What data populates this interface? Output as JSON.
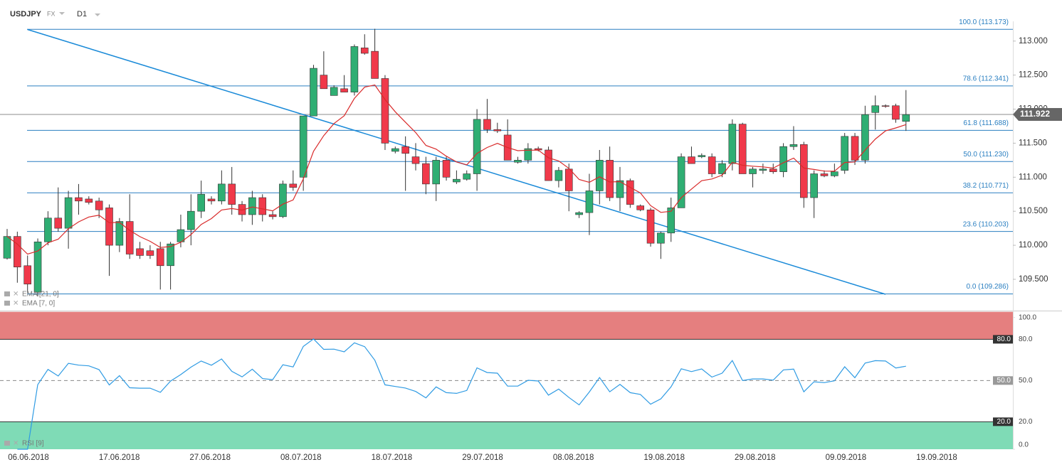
{
  "chart_data": {
    "type": "candlestick",
    "symbol": "USDJPY",
    "market": "FX",
    "timeframe": "D1",
    "indicators": [
      "EMA [21, 0]",
      "EMA [7, 0]"
    ],
    "rsi_label": "RSI [9]",
    "x_labels": [
      "06.06.2018",
      "17.06.2018",
      "27.06.2018",
      "08.07.2018",
      "18.07.2018",
      "29.07.2018",
      "08.08.2018",
      "19.08.2018",
      "29.08.2018",
      "09.09.2018",
      "19.09.2018"
    ],
    "open": [
      109.81,
      110.13,
      109.7,
      109.31,
      110.05,
      110.4,
      110.25,
      110.7,
      110.68,
      110.65,
      110.55,
      110.0,
      110.35,
      109.95,
      109.92,
      109.95,
      109.7,
      110.05,
      110.23,
      110.5,
      110.68,
      110.65,
      110.9,
      110.6,
      110.45,
      110.7,
      110.45,
      110.42,
      110.9,
      111.0,
      111.9,
      112.5,
      112.2,
      112.3,
      112.25,
      112.9,
      112.85,
      112.45,
      111.38,
      111.45,
      111.3,
      111.2,
      110.9,
      111.25,
      110.93,
      110.97,
      111.05,
      111.85,
      111.7,
      111.62,
      111.22,
      111.25,
      111.42,
      111.4,
      110.95,
      111.12,
      110.45,
      110.48,
      110.8,
      111.25,
      110.7,
      110.95,
      110.58,
      110.52,
      110.03,
      110.18,
      110.55,
      111.3,
      111.3,
      111.3,
      111.05,
      111.2,
      111.78,
      111.05,
      111.1,
      111.12,
      111.08,
      111.45,
      111.48,
      110.7,
      111.05,
      111.02,
      111.1,
      111.6,
      111.25,
      111.95,
      112.05,
      112.05,
      111.82
    ],
    "high": [
      110.24,
      110.2,
      109.85,
      110.1,
      110.5,
      110.85,
      110.8,
      110.9,
      110.72,
      110.7,
      110.6,
      110.4,
      110.75,
      110.05,
      110.0,
      110.05,
      110.05,
      110.45,
      110.75,
      110.95,
      110.72,
      111.1,
      111.15,
      110.65,
      110.8,
      110.75,
      110.5,
      110.95,
      111.1,
      111.9,
      112.65,
      112.85,
      112.35,
      112.5,
      112.95,
      113.1,
      113.18,
      112.5,
      111.45,
      111.6,
      111.5,
      111.3,
      111.3,
      111.3,
      111.1,
      111.1,
      112.0,
      112.15,
      111.8,
      111.85,
      111.3,
      111.5,
      111.45,
      111.45,
      111.15,
      111.2,
      110.5,
      111.05,
      111.4,
      111.45,
      111.15,
      110.98,
      110.6,
      110.55,
      110.2,
      110.7,
      111.35,
      111.45,
      111.35,
      111.35,
      111.25,
      111.85,
      111.8,
      111.15,
      111.2,
      111.2,
      111.5,
      111.75,
      111.52,
      111.1,
      111.1,
      111.2,
      111.65,
      111.65,
      112.05,
      112.2,
      112.07,
      112.08,
      112.28
    ],
    "low": [
      109.79,
      109.45,
      109.3,
      109.25,
      110.0,
      110.2,
      109.95,
      110.45,
      110.6,
      110.4,
      109.55,
      109.9,
      109.8,
      109.8,
      109.8,
      109.35,
      109.35,
      109.97,
      110.0,
      110.4,
      110.6,
      110.6,
      110.45,
      110.35,
      110.3,
      110.35,
      110.38,
      110.4,
      110.8,
      110.8,
      111.9,
      112.3,
      112.2,
      112.25,
      112.2,
      112.8,
      112.45,
      111.4,
      111.35,
      110.8,
      111.1,
      110.75,
      110.65,
      110.95,
      110.9,
      110.95,
      110.8,
      111.65,
      111.65,
      111.25,
      111.2,
      111.2,
      111.38,
      110.95,
      110.85,
      110.5,
      110.4,
      110.15,
      110.6,
      110.65,
      110.5,
      110.55,
      110.5,
      109.98,
      109.8,
      110.05,
      110.55,
      111.2,
      111.28,
      111.0,
      111.0,
      111.1,
      111.05,
      110.85,
      111.05,
      111.05,
      111.0,
      111.4,
      110.55,
      110.4,
      111.0,
      111.0,
      111.05,
      111.18,
      111.2,
      111.7,
      112.02,
      111.8,
      111.68
    ],
    "close": [
      110.13,
      109.68,
      109.43,
      110.05,
      110.4,
      110.25,
      110.7,
      110.65,
      110.63,
      110.52,
      110.0,
      110.35,
      109.87,
      109.85,
      109.85,
      109.7,
      110.02,
      110.23,
      110.5,
      110.75,
      110.65,
      110.9,
      110.6,
      110.45,
      110.7,
      110.45,
      110.42,
      110.9,
      110.85,
      111.9,
      112.6,
      112.3,
      112.32,
      112.25,
      112.92,
      112.82,
      112.45,
      111.5,
      111.42,
      111.35,
      111.2,
      110.9,
      111.25,
      111.0,
      110.97,
      111.05,
      111.85,
      111.7,
      111.68,
      111.25,
      111.25,
      111.42,
      111.4,
      110.95,
      111.1,
      110.8,
      110.48,
      110.8,
      111.25,
      110.7,
      110.95,
      110.6,
      110.52,
      110.03,
      110.18,
      110.55,
      111.3,
      111.2,
      111.32,
      111.05,
      111.2,
      111.78,
      111.05,
      111.12,
      111.12,
      111.08,
      111.45,
      111.48,
      110.7,
      111.05,
      111.02,
      111.08,
      111.6,
      111.25,
      111.92,
      112.05,
      112.04,
      111.85,
      111.92
    ],
    "last_price": {
      "value": 111.922,
      "label": "111.922"
    },
    "fib_levels": [
      {
        "value": 113.173,
        "label": "100.0 (113.173)"
      },
      {
        "value": 112.341,
        "label": "78.6 (112.341)"
      },
      {
        "value": 111.688,
        "label": "61.8 (111.688)"
      },
      {
        "value": 111.23,
        "label": "50.0 (111.230)"
      },
      {
        "value": 110.771,
        "label": "38.2 (110.771)"
      },
      {
        "value": 110.203,
        "label": "23.6 (110.203)"
      },
      {
        "value": 109.286,
        "label": "0.0 (109.286)"
      }
    ],
    "trendline": {
      "x": [
        2,
        86
      ],
      "y": [
        113.17,
        109.28
      ]
    },
    "ylim": [
      109.04,
      113.29
    ],
    "yticks": [
      {
        "value": 109.5,
        "label": "109.500"
      },
      {
        "value": 110,
        "label": "110.000"
      },
      {
        "value": 110.5,
        "label": "110.500"
      },
      {
        "value": 111,
        "label": "111.000"
      },
      {
        "value": 111.5,
        "label": "111.500"
      },
      {
        "value": 112,
        "label": "112.000"
      },
      {
        "value": 112.5,
        "label": "112.500"
      },
      {
        "value": 113,
        "label": "113.000"
      }
    ],
    "rsi_ylim": [
      0,
      100
    ],
    "rsi_yticks": [
      {
        "value": 0,
        "label": "0.0"
      },
      {
        "value": 20,
        "label": "20.0"
      },
      {
        "value": 50,
        "label": "50.0"
      },
      {
        "value": 80,
        "label": "80.0"
      },
      {
        "value": 100,
        "label": "100.0"
      }
    ],
    "up_color": "#2fae73",
    "down_color": "#f0394a",
    "ema_color": "#d92b2b",
    "fib_color": "#2a7fc1",
    "rsi_color": "#2f9be3"
  }
}
